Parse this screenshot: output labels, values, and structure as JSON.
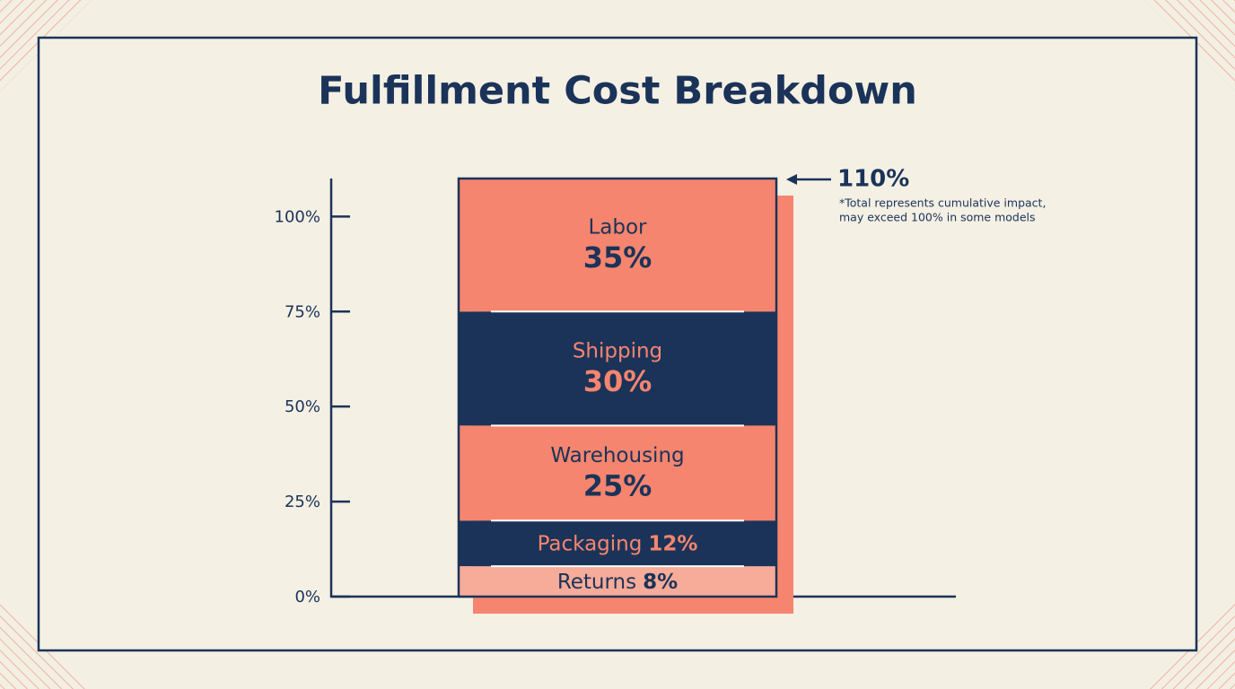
{
  "chart_data": {
    "type": "stacked-bar",
    "title": "Fulfillment Cost Breakdown",
    "series": [
      {
        "name": "Returns",
        "color": "#f7ab99",
        "values": [
          8
        ],
        "value_labels": [
          "8%"
        ]
      },
      {
        "name": "Packaging",
        "color": "#1b3358",
        "values": [
          12
        ],
        "value_labels": [
          "12%"
        ]
      },
      {
        "name": "Warehousing",
        "color": "#f5856f",
        "values": [
          25
        ],
        "value_labels": [
          "25%"
        ]
      },
      {
        "name": "Shipping",
        "color": "#1b3358",
        "values": [
          30
        ],
        "value_labels": [
          "30%"
        ]
      },
      {
        "name": "Labor",
        "color": "#f5856f",
        "values": [
          35
        ],
        "value_labels": [
          "35%"
        ]
      }
    ],
    "ylim": [
      0,
      110
    ],
    "yticks": [
      {
        "value": 0,
        "label": "0%"
      },
      {
        "value": 25,
        "label": "25%"
      },
      {
        "value": 50,
        "label": "50%"
      },
      {
        "value": 75,
        "label": "75%"
      },
      {
        "value": 100,
        "label": "100%"
      }
    ],
    "total_label": "110%",
    "note": [
      "*Total represents cumulative impact,",
      "may exceed 100% in some models"
    ]
  }
}
